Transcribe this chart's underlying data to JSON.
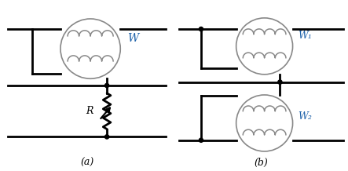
{
  "bg_color": "#ffffff",
  "line_color": "#000000",
  "label_color": "#1a5fa8",
  "coil_color": "#888888",
  "circle_color": "#888888",
  "label_a": "(a)",
  "label_b": "(b)",
  "W_label": "W",
  "W1_label": "W₁",
  "W2_label": "W₂",
  "R_label": "R"
}
